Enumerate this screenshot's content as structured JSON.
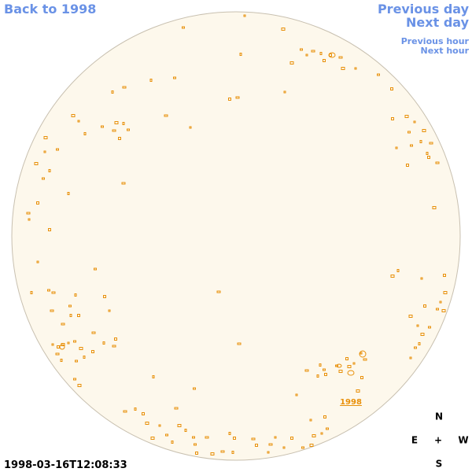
{
  "navigation": {
    "back": "Back to 1998",
    "previous_day": "Previous day",
    "next_day": "Next day",
    "previous_hour": "Previous hour",
    "next_hour": "Next hour"
  },
  "region_label": "1998",
  "compass": {
    "north": "N",
    "east": "E",
    "center": "+",
    "west": "W",
    "south": "S"
  },
  "timestamp": "1998-03-16T12:08:33"
}
